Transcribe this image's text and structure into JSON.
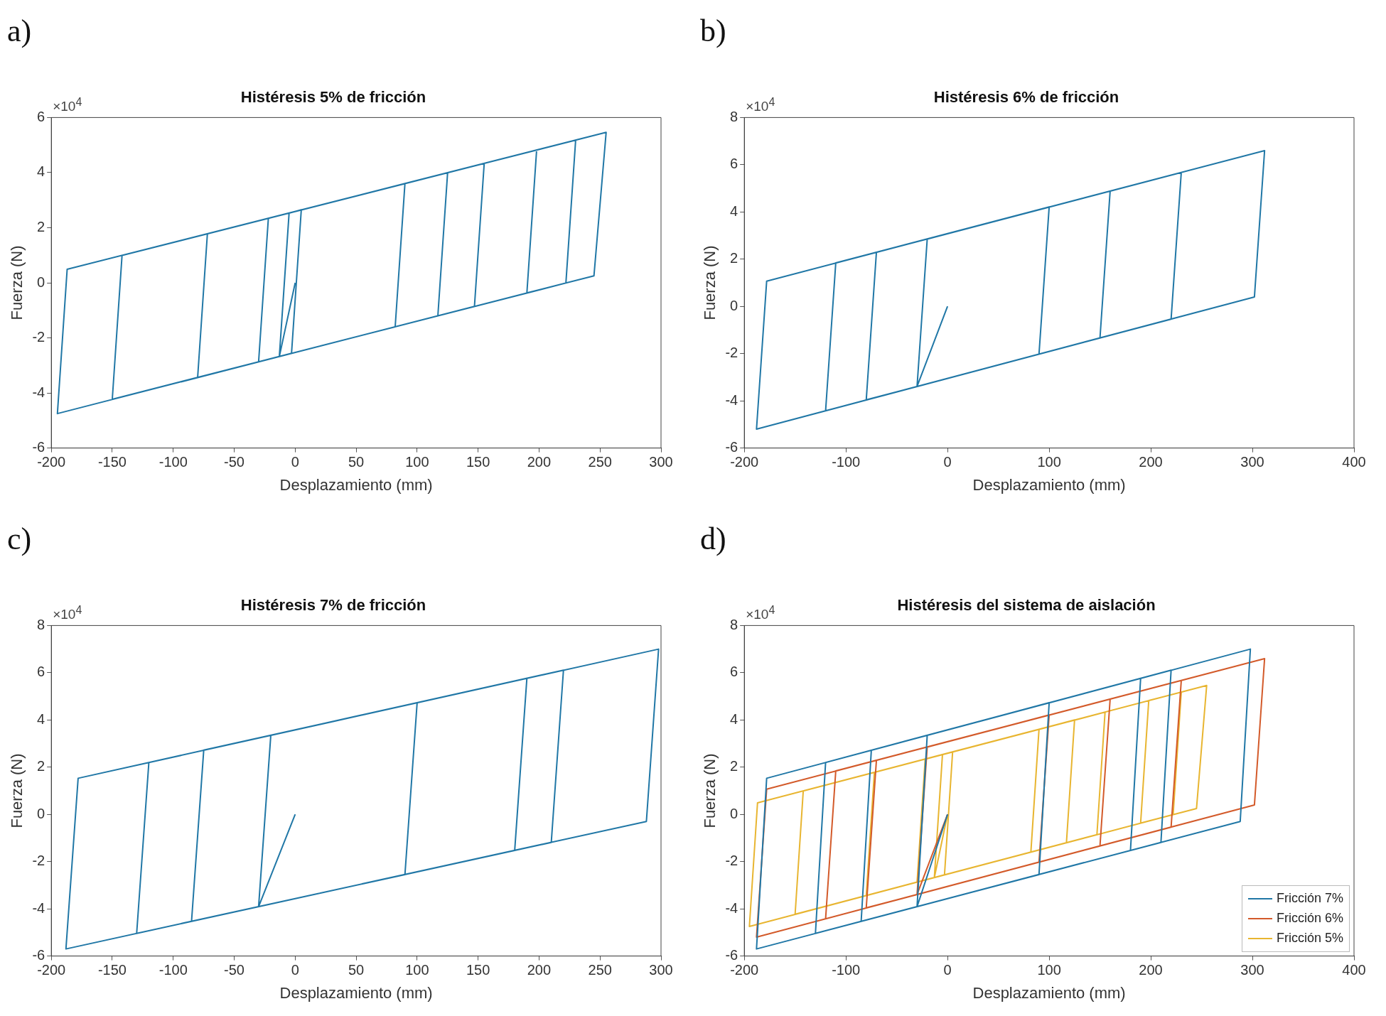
{
  "chart_data": [
    {
      "type": "line",
      "title": "Histéresis 5% de fricción",
      "xlabel": "Desplazamiento (mm)",
      "ylabel": "Fuerza (N)",
      "annotations": [
        "a)",
        "×10$^{4}$"
      ],
      "xlim": [
        -200,
        300
      ],
      "xticks": [
        -200,
        -150,
        -100,
        -50,
        0,
        50,
        100,
        150,
        200,
        250,
        300
      ],
      "ylim": [
        -6,
        6
      ],
      "yticks": [
        -6,
        -4,
        -2,
        0,
        2,
        4,
        6
      ],
      "grid": false,
      "marker": "none",
      "series": [
        {
          "color": "#2077a6",
          "x": [
            0,
            -13,
            -5,
            5,
            -3,
            -80,
            -72,
            125,
            117,
            -195,
            -187,
            255,
            245,
            190,
            198,
            230,
            222,
            -150,
            -142,
            90,
            82,
            -30,
            -22,
            155,
            147,
            20
          ],
          "values": [
            0,
            -2.68,
            2.53,
            2.65,
            -2.56,
            -3.44,
            1.78,
            4.0,
            -1.2,
            -4.75,
            0.49,
            5.46,
            0.25,
            -0.37,
            4.82,
            5.18,
            -0.01,
            -4.23,
            0.99,
            3.6,
            -1.6,
            -2.87,
            2.34,
            4.33,
            -0.86,
            -2.3
          ]
        }
      ]
    },
    {
      "type": "line",
      "title": "Histéresis 6% de fricción",
      "xlabel": "Desplazamiento (mm)",
      "ylabel": "Fuerza (N)",
      "annotations": [
        "b)",
        "×10$^{4}$"
      ],
      "xlim": [
        -200,
        400
      ],
      "xticks": [
        -200,
        -100,
        0,
        100,
        200,
        300,
        400
      ],
      "ylim": [
        -6,
        8
      ],
      "yticks": [
        -6,
        -4,
        -2,
        0,
        2,
        4,
        6,
        8
      ],
      "grid": false,
      "marker": "none",
      "series": [
        {
          "color": "#2077a6",
          "x": [
            0,
            -30,
            -20,
            230,
            220,
            -80,
            -70,
            160,
            150,
            -188,
            -178,
            312,
            302,
            -120,
            -110,
            100,
            90,
            20
          ],
          "values": [
            0,
            -3.39,
            2.85,
            5.67,
            -0.54,
            -3.96,
            2.29,
            4.88,
            -1.34,
            -5.2,
            1.07,
            6.6,
            0.4,
            -4.42,
            1.84,
            4.21,
            -2.02,
            -2.82
          ]
        }
      ]
    },
    {
      "type": "line",
      "title": "Histéresis 7% de fricción",
      "xlabel": "Desplazamiento (mm)",
      "ylabel": "Fuerza (N)",
      "annotations": [
        "c)",
        "×10$^{4}$"
      ],
      "xlim": [
        -200,
        300
      ],
      "xticks": [
        -200,
        -150,
        -100,
        -50,
        0,
        50,
        100,
        150,
        200,
        250,
        300
      ],
      "ylim": [
        -6,
        8
      ],
      "yticks": [
        -6,
        -4,
        -2,
        0,
        2,
        4,
        6,
        8
      ],
      "grid": false,
      "marker": "none",
      "series": [
        {
          "color": "#2077a6",
          "x": [
            0,
            -30,
            -20,
            190,
            180,
            -85,
            -75,
            220,
            210,
            -188,
            -178,
            298,
            288,
            -130,
            -120,
            100,
            90,
            20
          ],
          "values": [
            0,
            -3.91,
            3.35,
            5.76,
            -1.53,
            -4.53,
            2.72,
            6.11,
            -1.19,
            -5.7,
            1.53,
            7.0,
            -0.3,
            -5.04,
            2.2,
            4.73,
            -2.55,
            -3.34
          ]
        }
      ]
    },
    {
      "type": "line",
      "title": "Histéresis del sistema de aislación",
      "xlabel": "Desplazamiento (mm)",
      "ylabel": "Fuerza (N)",
      "annotations": [
        "d)",
        "×10$^{4}$"
      ],
      "xlim": [
        -200,
        400
      ],
      "xticks": [
        -200,
        -100,
        0,
        100,
        200,
        300,
        400
      ],
      "ylim": [
        -6,
        8
      ],
      "yticks": [
        -6,
        -4,
        -2,
        0,
        2,
        4,
        6,
        8
      ],
      "grid": false,
      "marker": "none",
      "legend": "bottom right",
      "series": [
        {
          "name": "Fricción 7%",
          "color": "#2077a6",
          "x": [
            0,
            -30,
            -20,
            190,
            180,
            -85,
            -75,
            220,
            210,
            -188,
            -178,
            298,
            288,
            -130,
            -120,
            100,
            90,
            20
          ],
          "values": [
            0,
            -3.91,
            3.35,
            5.76,
            -1.53,
            -4.53,
            2.72,
            6.11,
            -1.19,
            -5.7,
            1.53,
            7.0,
            -0.3,
            -5.04,
            2.2,
            4.73,
            -2.55,
            -3.34
          ]
        },
        {
          "name": "Fricción 6%",
          "color": "#d35a2a",
          "x": [
            0,
            -30,
            -20,
            230,
            220,
            -80,
            -70,
            160,
            150,
            -188,
            -178,
            312,
            302,
            -120,
            -110,
            100,
            90,
            20
          ],
          "values": [
            0,
            -3.39,
            2.85,
            5.67,
            -0.54,
            -3.96,
            2.29,
            4.88,
            -1.34,
            -5.2,
            1.07,
            6.6,
            0.4,
            -4.42,
            1.84,
            4.21,
            -2.02,
            -2.82
          ]
        },
        {
          "name": "Fricción 5%",
          "color": "#e8b530",
          "x": [
            0,
            -13,
            -5,
            5,
            -3,
            -80,
            -72,
            125,
            117,
            -195,
            -187,
            255,
            245,
            190,
            198,
            230,
            222,
            -150,
            -142,
            90,
            82,
            -30,
            -22,
            155,
            147,
            20
          ],
          "values": [
            0,
            -2.68,
            2.53,
            2.65,
            -2.56,
            -3.44,
            1.78,
            4.0,
            -1.2,
            -4.75,
            0.49,
            5.46,
            0.25,
            -0.37,
            4.82,
            5.18,
            -0.01,
            -4.23,
            0.99,
            3.6,
            -1.6,
            -2.87,
            2.34,
            4.33,
            -0.86,
            -2.3
          ]
        }
      ]
    }
  ]
}
